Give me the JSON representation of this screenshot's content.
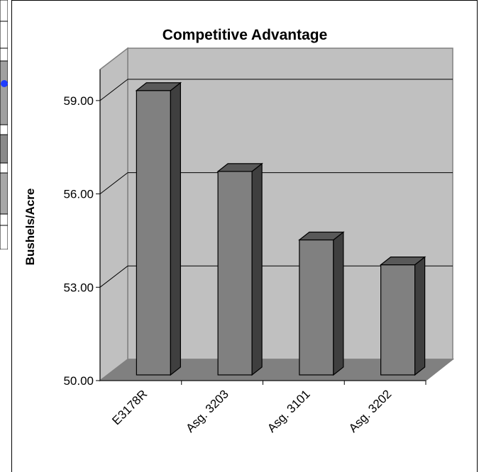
{
  "chart_data": {
    "type": "bar",
    "title": "Competitive Advantage",
    "xlabel": "",
    "ylabel": "Bushels/Acre",
    "categories": [
      "E3178R",
      "Asg. 3203",
      "Asg. 3101",
      "Asg. 3202"
    ],
    "values": [
      59.55,
      56.95,
      54.75,
      53.95
    ],
    "ylim": [
      50,
      60
    ],
    "yticks": [
      "50.00",
      "53.00",
      "56.00",
      "59.00"
    ],
    "grid": true,
    "style": "3d-column",
    "colors": {
      "bar_front": "#808080",
      "bar_side": "#3f3f3f",
      "bar_top": "#595959",
      "wall": "#c0c0c0",
      "floor": "#808080"
    }
  }
}
